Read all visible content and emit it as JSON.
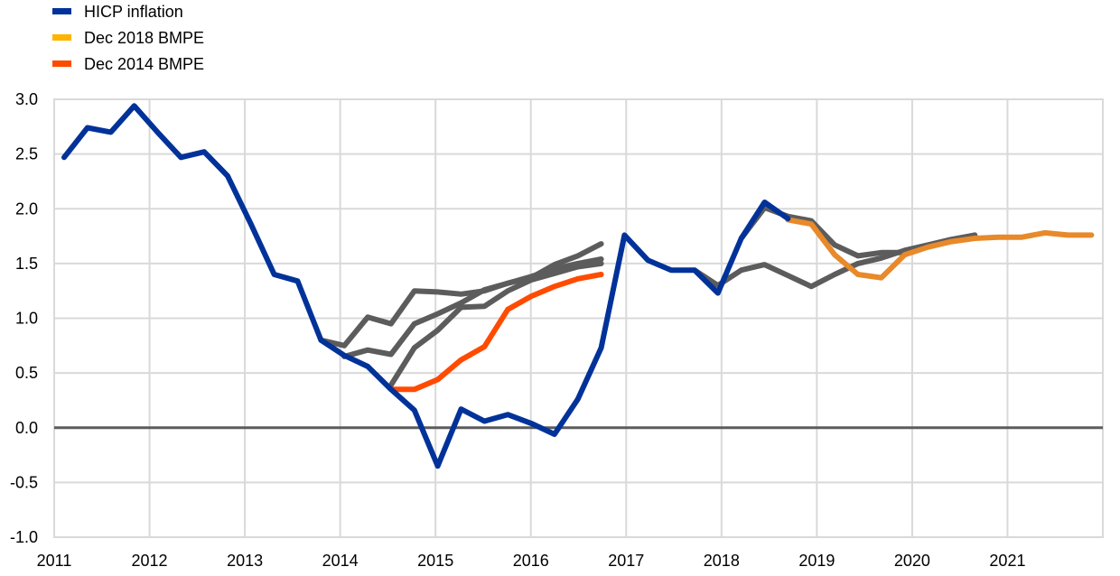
{
  "chart_data": {
    "type": "line",
    "title": "",
    "xlabel": "",
    "ylabel": "",
    "ylim": [
      -1.0,
      3.0
    ],
    "xlim": [
      2011,
      2022
    ],
    "grid": true,
    "legend_position": "top-left",
    "x_ticks": [
      "2011",
      "2012",
      "2013",
      "2014",
      "2015",
      "2016",
      "2017",
      "2018",
      "2019",
      "2020",
      "2021"
    ],
    "y_ticks": [
      "3.0",
      "2.5",
      "2.0",
      "1.5",
      "1.0",
      "0.5",
      "0.0",
      "-0.5",
      "-1.0"
    ],
    "y_tick_values": [
      3.0,
      2.5,
      2.0,
      1.5,
      1.0,
      0.5,
      0.0,
      -0.5,
      -1.0
    ],
    "x_frequency": "quarterly",
    "x_first_quarter": "2011Q1",
    "legend": [
      {
        "name": "HICP inflation",
        "color": "#003299"
      },
      {
        "name": "Dec 2018 BMPE",
        "color": "#FFB400"
      },
      {
        "name": "Dec 2014 BMPE",
        "color": "#FF4B00"
      }
    ],
    "series": [
      {
        "name": "Projection (grey) 1",
        "color": "#5C5C5C",
        "start_index": 11,
        "values": [
          0.8,
          0.75,
          1.01,
          0.95,
          1.25,
          1.24,
          1.22,
          1.25,
          1.32,
          1.37,
          1.49,
          1.57,
          1.68
        ]
      },
      {
        "name": "Projection (grey) 2",
        "color": "#5C5C5C",
        "start_index": 12,
        "values": [
          0.65,
          0.71,
          0.67,
          0.95,
          1.04,
          1.14,
          1.26,
          1.32,
          1.38,
          1.45,
          1.5,
          1.54
        ]
      },
      {
        "name": "Projection (grey) 3",
        "color": "#5C5C5C",
        "start_index": 14,
        "values": [
          0.39,
          0.73,
          0.89,
          1.1,
          1.11,
          1.25,
          1.35,
          1.41,
          1.47,
          1.5
        ]
      },
      {
        "name": "Projection (grey) 4",
        "color": "#5C5C5C",
        "start_index": 27,
        "values": [
          1.44,
          1.3,
          1.44,
          1.49,
          1.39,
          1.29,
          1.4,
          1.5,
          1.55,
          1.62,
          1.67,
          1.72,
          1.76
        ]
      },
      {
        "name": "Projection (grey) 5",
        "color": "#5C5C5C",
        "start_index": 29,
        "values": [
          1.73,
          2.01,
          1.93,
          1.89,
          1.67,
          1.57,
          1.6,
          1.6,
          1.66,
          1.71,
          1.76
        ]
      },
      {
        "name": "Dec 2014 BMPE",
        "color": "#FF4B00",
        "start_index": 14,
        "values": [
          0.35,
          0.35,
          0.44,
          0.62,
          0.74,
          1.08,
          1.2,
          1.29,
          1.36,
          1.4
        ]
      },
      {
        "name": "Dec 2018 BMPE",
        "color": "#E8892A",
        "start_index": 31,
        "values": [
          1.9,
          1.86,
          1.58,
          1.4,
          1.37,
          1.58,
          1.65,
          1.7,
          1.73,
          1.74,
          1.74,
          1.78,
          1.76,
          1.76
        ]
      },
      {
        "name": "HICP inflation",
        "color": "#003299",
        "start_index": 0,
        "values": [
          2.47,
          2.74,
          2.7,
          2.94,
          2.7,
          2.47,
          2.52,
          2.3,
          1.86,
          1.4,
          1.34,
          0.8,
          0.66,
          0.56,
          0.35,
          0.16,
          -0.35,
          0.17,
          0.06,
          0.12,
          0.04,
          -0.06,
          0.26,
          0.73,
          1.76,
          1.53,
          1.44,
          1.44,
          1.23,
          1.73,
          2.06,
          1.91
        ]
      }
    ]
  }
}
